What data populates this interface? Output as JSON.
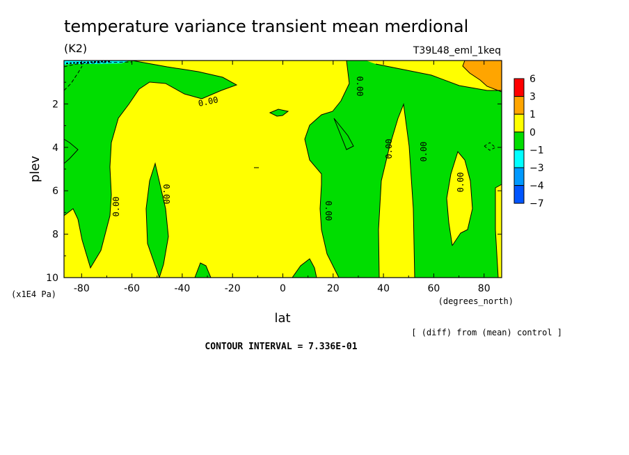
{
  "chart_data": {
    "type": "heatmap",
    "title": "temperature variance transient mean merdional",
    "units": "(K2)",
    "run_label": "T39L48_eml_1keq",
    "xlabel": "lat",
    "x_units": "(degrees_north)",
    "ylabel": "plev",
    "y_units": "(x1E4 Pa)",
    "xlim": [
      -87,
      87
    ],
    "ylim": [
      0,
      10
    ],
    "y_inverted": true,
    "x_ticks": [
      "-80",
      "-60",
      "-40",
      "-20",
      "0",
      "20",
      "40",
      "60",
      "80"
    ],
    "x_tick_values": [
      -80,
      -60,
      -40,
      -20,
      0,
      20,
      40,
      60,
      80
    ],
    "y_ticks": [
      "2",
      "4",
      "6",
      "8",
      "10"
    ],
    "y_tick_values": [
      2,
      4,
      6,
      8,
      10
    ],
    "diff_note": "[ (diff) from (mean) control ]",
    "contour_interval_text": "CONTOUR INTERVAL = 7.336E-01",
    "contour_label": "0.00",
    "colorbar": {
      "levels": [
        "6",
        "3",
        "1",
        "0",
        "−1",
        "−3",
        "−4",
        "−7"
      ],
      "colors": [
        "#ff0000",
        "#ffa500",
        "#ffff00",
        "#00dd00",
        "#00ffff",
        "#0099ff",
        "#0055ff"
      ]
    },
    "field_colors": {
      "positive": "#ffff00",
      "negative": "#00dd00",
      "high_positive": "#ffa500",
      "low_negative": "#00ffff"
    }
  }
}
